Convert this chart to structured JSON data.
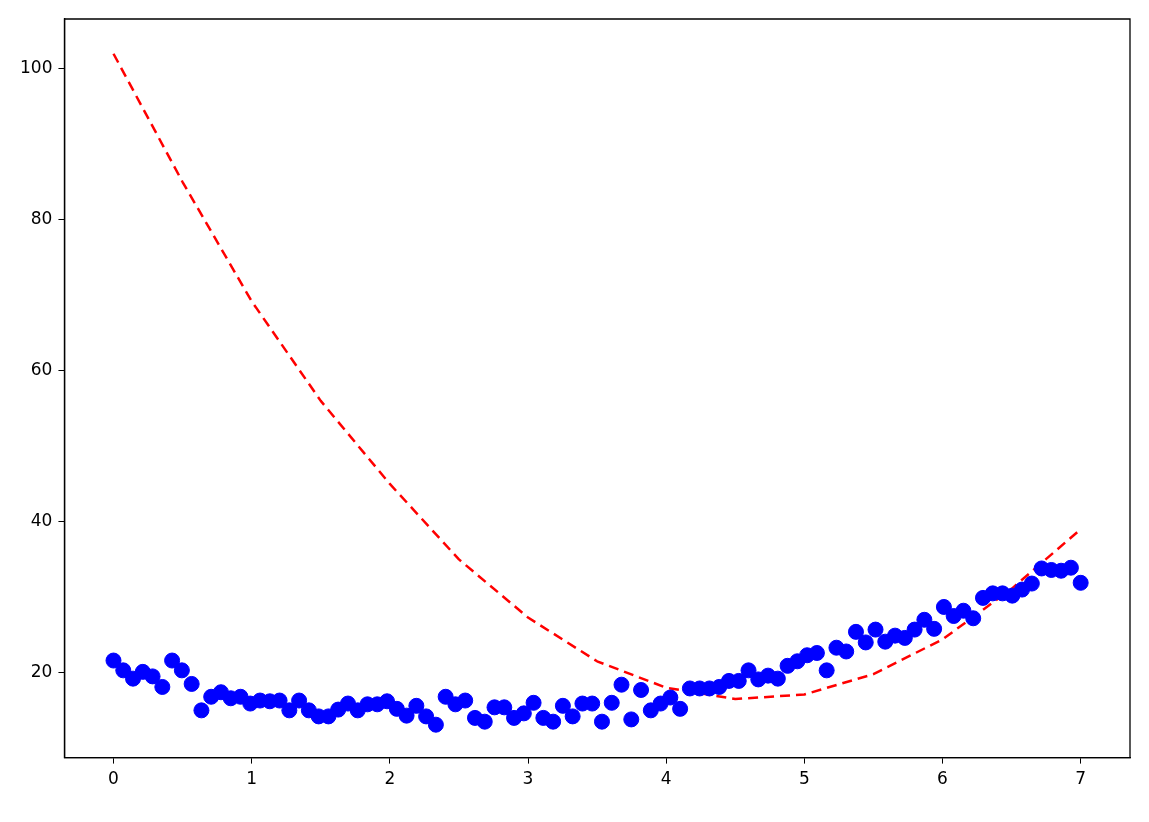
{
  "chart_data": {
    "type": "scatter",
    "xlim": [
      -0.355,
      7.357
    ],
    "ylim": [
      8.74,
      106.6
    ],
    "xticks": [
      0,
      1,
      2,
      3,
      4,
      5,
      6,
      7
    ],
    "yticks": [
      20,
      40,
      60,
      80,
      100
    ],
    "grid": false,
    "legend": false,
    "series": [
      {
        "type": "scatter",
        "color": "#0000ff",
        "marker": "circle",
        "x": [
          0,
          0.0707,
          0.1414,
          0.2121,
          0.2828,
          0.3535,
          0.4242,
          0.4949,
          0.5657,
          0.6364,
          0.7071,
          0.7778,
          0.8485,
          0.9192,
          0.9899,
          1.0606,
          1.1313,
          1.202,
          1.2727,
          1.3434,
          1.4141,
          1.4848,
          1.5556,
          1.6263,
          1.697,
          1.7677,
          1.8384,
          1.9091,
          1.9798,
          2.0505,
          2.1212,
          2.1919,
          2.2626,
          2.3333,
          2.404,
          2.4747,
          2.5455,
          2.6162,
          2.6869,
          2.7576,
          2.8283,
          2.899,
          2.9697,
          3.0404,
          3.1111,
          3.1818,
          3.2525,
          3.3232,
          3.3939,
          3.4646,
          3.5354,
          3.6061,
          3.6768,
          3.7475,
          3.8182,
          3.8889,
          3.9596,
          4.0303,
          4.101,
          4.1717,
          4.2424,
          4.3131,
          4.3838,
          4.4545,
          4.5253,
          4.596,
          4.6667,
          4.7374,
          4.8081,
          4.8788,
          4.9495,
          5.0202,
          5.0909,
          5.1616,
          5.2323,
          5.303,
          5.3737,
          5.4444,
          5.5152,
          5.5859,
          5.6566,
          5.7273,
          5.798,
          5.8687,
          5.9394,
          6.0101,
          6.0808,
          6.1515,
          6.2222,
          6.2929,
          6.3636,
          6.4343,
          6.5051,
          6.5758,
          6.6465,
          6.7172,
          6.7879,
          6.8586,
          6.9293,
          7
        ],
        "values": [
          21.6,
          20.3,
          19.2,
          20.1,
          19.5,
          18.1,
          21.6,
          20.3,
          18.5,
          15.0,
          16.8,
          17.4,
          16.6,
          16.8,
          15.9,
          16.3,
          16.2,
          16.3,
          15.0,
          16.3,
          15.0,
          14.2,
          14.2,
          15.1,
          15.9,
          15.0,
          15.8,
          15.8,
          16.2,
          15.2,
          14.3,
          15.6,
          14.2,
          13.1,
          16.8,
          15.8,
          16.3,
          14.0,
          13.5,
          15.4,
          15.4,
          14.0,
          14.6,
          16.0,
          14.0,
          13.5,
          15.6,
          14.2,
          15.9,
          15.9,
          13.5,
          16.0,
          18.4,
          13.8,
          17.7,
          15.0,
          15.9,
          16.7,
          15.2,
          17.9,
          17.9,
          17.9,
          18.1,
          18.9,
          18.9,
          20.3,
          19.1,
          19.6,
          19.2,
          20.9,
          21.5,
          22.3,
          22.6,
          20.3,
          23.3,
          22.8,
          25.4,
          24.0,
          25.7,
          24.1,
          24.9,
          24.6,
          25.7,
          27.0,
          25.8,
          28.7,
          27.5,
          28.2,
          27.2,
          29.9,
          30.5,
          30.5,
          30.2,
          31.0,
          31.8,
          33.8,
          33.6,
          33.5,
          33.9,
          31.9
        ]
      },
      {
        "type": "line",
        "color": "#ff0000",
        "line_style": "dashed",
        "marker": "none",
        "x": [
          0,
          0.5,
          1,
          1.5,
          2,
          2.5,
          3,
          3.5,
          4,
          4.5,
          5,
          5.5,
          6,
          6.5,
          7
        ],
        "values": [
          102,
          85,
          69.2,
          56,
          45,
          35,
          27.3,
          21.5,
          18,
          16.5,
          17.1,
          19.8,
          24.4,
          31.1,
          39
        ]
      }
    ]
  }
}
